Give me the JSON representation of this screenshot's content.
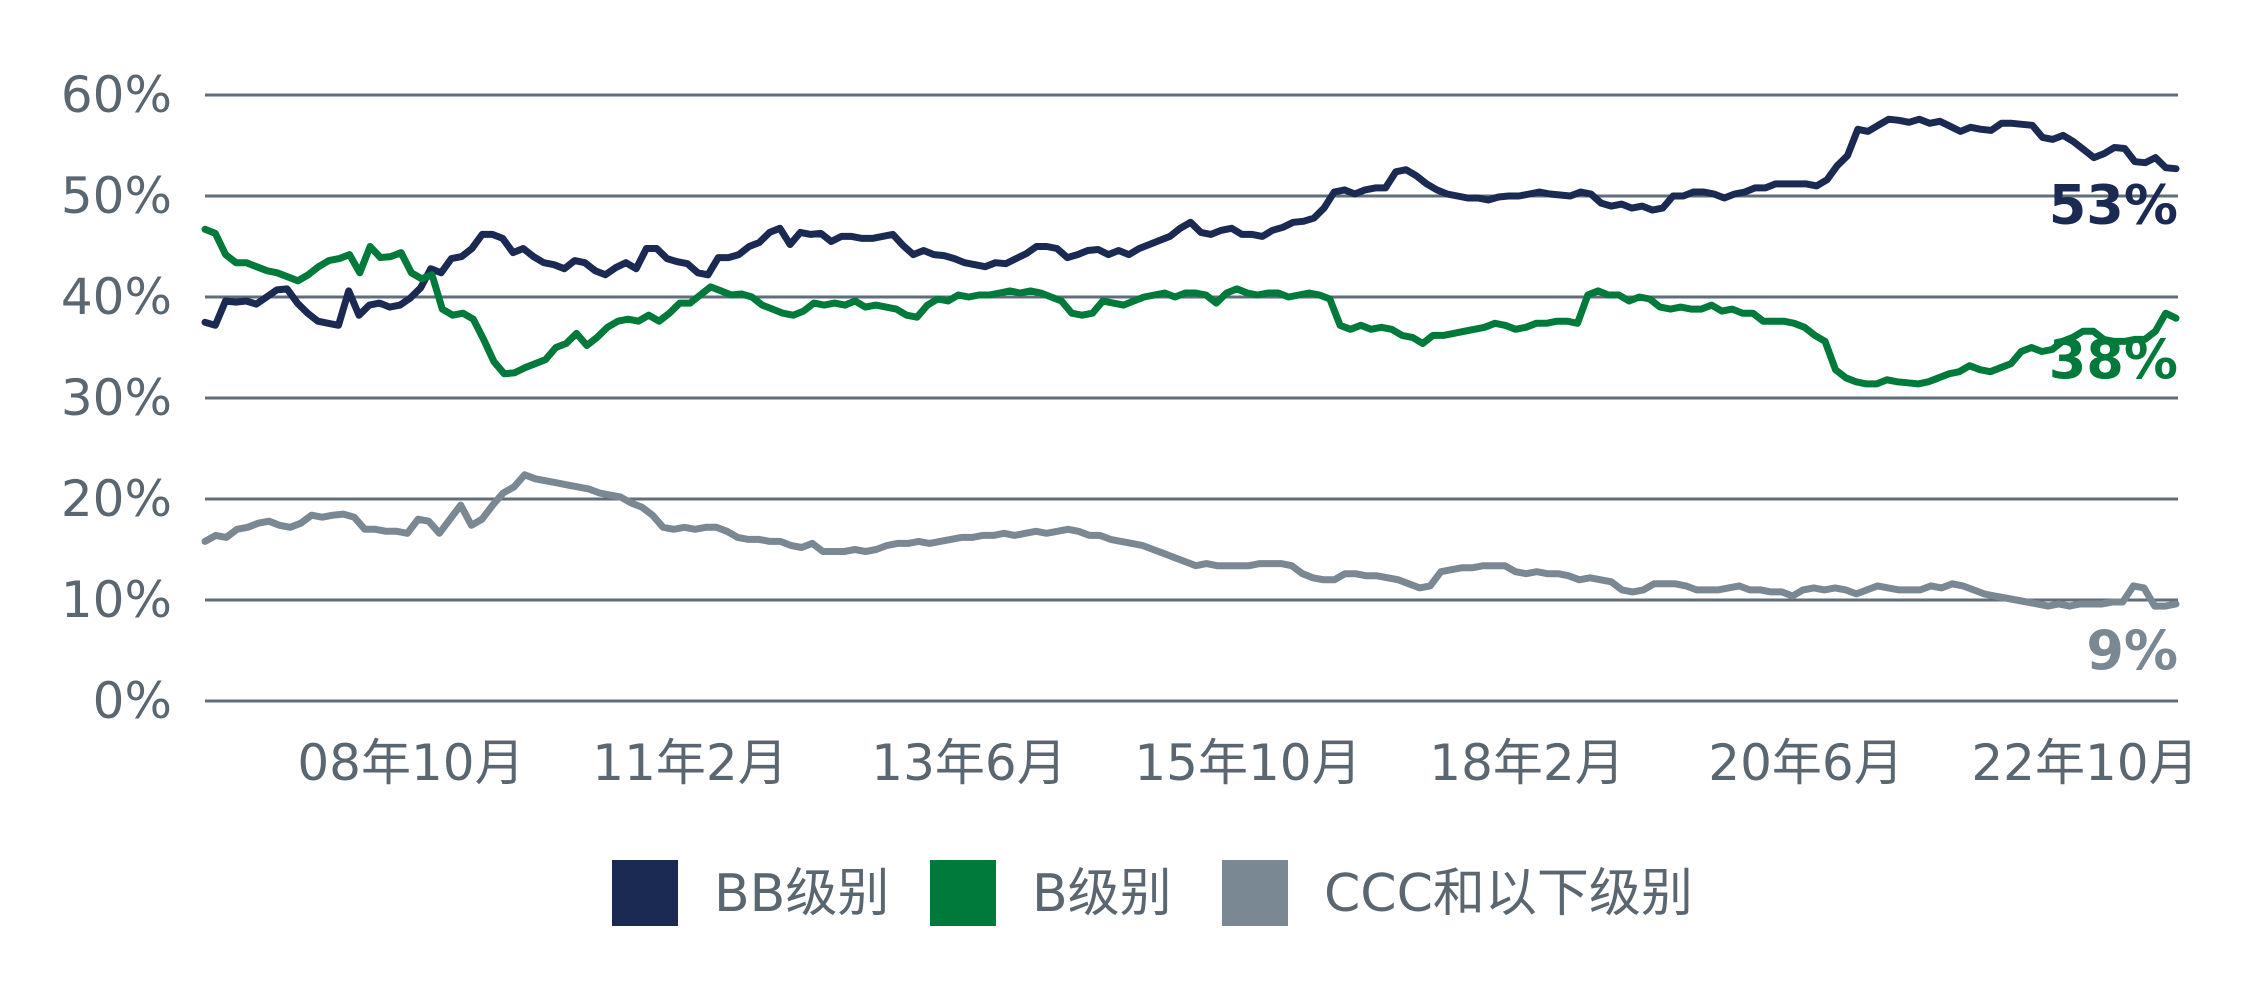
{
  "chart_data": {
    "type": "line",
    "title": "",
    "xlabel": "",
    "ylabel": "",
    "ylim": [
      0,
      60
    ],
    "y_ticks": [
      "0%",
      "10%",
      "20%",
      "30%",
      "40%",
      "50%",
      "60%"
    ],
    "x_ticks": [
      "08年10月",
      "11年2月",
      "13年6月",
      "15年10月",
      "18年2月",
      "20年6月",
      "22年10月"
    ],
    "grid": true,
    "legend_position": "bottom",
    "series": [
      {
        "name": "BB级别",
        "color": "#1b2a52",
        "end_label": "53%",
        "values": [
          37.5,
          37.2,
          39.6,
          39.5,
          39.6,
          39.3,
          40.0,
          40.7,
          40.8,
          39.4,
          38.4,
          37.6,
          37.4,
          37.2,
          40.6,
          38.2,
          39.2,
          39.4,
          39.0,
          39.2,
          39.9,
          40.9,
          42.8,
          42.4,
          43.8,
          44.0,
          44.8,
          46.2,
          46.2,
          45.8,
          44.4,
          44.8,
          44.0,
          43.4,
          43.2,
          42.8,
          43.6,
          43.4,
          42.6,
          42.2,
          42.9,
          43.4,
          42.8,
          44.8,
          44.8,
          43.8,
          43.5,
          43.3,
          42.4,
          42.2,
          43.9,
          43.9,
          44.2,
          45.0,
          45.4,
          46.4,
          46.8,
          45.2,
          46.4,
          46.2,
          46.3,
          45.5,
          46.0,
          46.0,
          45.8,
          45.8,
          46.0,
          46.2,
          45.1,
          44.2,
          44.6,
          44.2,
          44.1,
          43.8,
          43.4,
          43.2,
          43.0,
          43.4,
          43.3,
          43.8,
          44.3,
          45.0,
          45.0,
          44.8,
          43.9,
          44.2,
          44.6,
          44.7,
          44.2,
          44.6,
          44.2,
          44.8,
          45.2,
          45.6,
          46.0,
          46.8,
          47.4,
          46.4,
          46.2,
          46.6,
          46.8,
          46.2,
          46.2,
          46.0,
          46.6,
          46.9,
          47.4,
          47.5,
          47.8,
          48.8,
          50.4,
          50.6,
          50.2,
          50.6,
          50.8,
          50.8,
          52.4,
          52.6,
          52.0,
          51.2,
          50.6,
          50.2,
          50.0,
          49.8,
          49.8,
          49.6,
          49.9,
          50.0,
          50.0,
          50.2,
          50.4,
          50.2,
          50.1,
          50.0,
          50.4,
          50.2,
          49.3,
          49.0,
          49.2,
          48.8,
          49.0,
          48.6,
          48.8,
          50.0,
          50.0,
          50.4,
          50.4,
          50.2,
          49.8,
          50.2,
          50.4,
          50.8,
          50.8,
          51.2,
          51.2,
          51.2,
          51.2,
          51.0,
          51.6,
          53.0,
          54.0,
          56.6,
          56.4,
          57.0,
          57.6,
          57.5,
          57.3,
          57.6,
          57.2,
          57.4,
          56.9,
          56.4,
          56.8,
          56.6,
          56.5,
          57.2,
          57.2,
          57.1,
          57.0,
          55.8,
          55.6,
          56.0,
          55.4,
          54.6,
          53.8,
          54.2,
          54.8,
          54.7,
          53.4,
          53.3,
          53.8,
          52.8,
          52.7
        ]
      },
      {
        "name": "B级别",
        "color": "#007a3b",
        "end_label": "38%",
        "values": [
          46.7,
          46.3,
          44.2,
          43.4,
          43.4,
          43.0,
          42.6,
          42.4,
          42.0,
          41.6,
          42.2,
          43.0,
          43.6,
          43.8,
          44.2,
          42.4,
          45.0,
          43.9,
          44.0,
          44.4,
          42.4,
          41.8,
          42.2,
          38.8,
          38.2,
          38.4,
          37.8,
          35.8,
          33.6,
          32.4,
          32.5,
          33.0,
          33.4,
          33.8,
          35.0,
          35.4,
          36.4,
          35.2,
          36.0,
          37.0,
          37.6,
          37.8,
          37.6,
          38.2,
          37.6,
          38.4,
          39.4,
          39.4,
          40.2,
          41.0,
          40.6,
          40.2,
          40.3,
          40.0,
          39.2,
          38.8,
          38.4,
          38.2,
          38.6,
          39.4,
          39.2,
          39.4,
          39.2,
          39.6,
          39.0,
          39.2,
          39.0,
          38.8,
          38.2,
          38.0,
          39.2,
          39.8,
          39.6,
          40.2,
          40.0,
          40.2,
          40.2,
          40.4,
          40.6,
          40.4,
          40.6,
          40.4,
          40.0,
          39.6,
          38.4,
          38.2,
          38.4,
          39.6,
          39.4,
          39.2,
          39.6,
          40.0,
          40.2,
          40.4,
          40.0,
          40.4,
          40.4,
          40.2,
          39.4,
          40.4,
          40.8,
          40.4,
          40.2,
          40.4,
          40.4,
          40.0,
          40.2,
          40.4,
          40.2,
          39.8,
          37.2,
          36.8,
          37.2,
          36.8,
          37.0,
          36.8,
          36.2,
          36.0,
          35.4,
          36.2,
          36.2,
          36.4,
          36.6,
          36.8,
          37.0,
          37.4,
          37.2,
          36.8,
          37.0,
          37.4,
          37.4,
          37.6,
          37.6,
          37.4,
          40.2,
          40.6,
          40.2,
          40.2,
          39.6,
          40.0,
          39.8,
          39.0,
          38.8,
          39.0,
          38.8,
          38.8,
          39.2,
          38.6,
          38.8,
          38.4,
          38.4,
          37.6,
          37.6,
          37.6,
          37.4,
          37.0,
          36.2,
          35.6,
          32.8,
          32.0,
          31.6,
          31.4,
          31.4,
          31.8,
          31.6,
          31.5,
          31.4,
          31.6,
          32.0,
          32.4,
          32.6,
          33.2,
          32.8,
          32.6,
          33.0,
          33.4,
          34.6,
          35.0,
          34.6,
          34.8,
          35.6,
          36.0,
          36.6,
          36.6,
          35.8,
          35.6,
          35.6,
          35.8,
          35.8,
          36.6,
          38.4,
          37.9
        ]
      },
      {
        "name": "CCC和以下级别",
        "color": "#7a8893",
        "end_label": "9%",
        "values": [
          15.8,
          16.4,
          16.2,
          17.0,
          17.2,
          17.6,
          17.8,
          17.4,
          17.2,
          17.6,
          18.4,
          18.2,
          18.4,
          18.5,
          18.2,
          17.0,
          17.0,
          16.8,
          16.8,
          16.6,
          18.0,
          17.8,
          16.6,
          18.0,
          19.4,
          17.4,
          18.0,
          19.4,
          20.6,
          21.2,
          22.4,
          22.0,
          21.8,
          21.6,
          21.4,
          21.2,
          21.0,
          20.6,
          20.4,
          20.2,
          19.6,
          19.2,
          18.4,
          17.2,
          17.0,
          17.2,
          17.0,
          17.2,
          17.2,
          16.8,
          16.2,
          16.0,
          16.0,
          15.8,
          15.8,
          15.4,
          15.2,
          15.6,
          14.8,
          14.8,
          14.8,
          15.0,
          14.8,
          15.0,
          15.4,
          15.6,
          15.6,
          15.8,
          15.6,
          15.8,
          16.0,
          16.2,
          16.2,
          16.4,
          16.4,
          16.6,
          16.4,
          16.6,
          16.8,
          16.6,
          16.8,
          17.0,
          16.8,
          16.4,
          16.4,
          16.0,
          15.8,
          15.6,
          15.4,
          15.0,
          14.6,
          14.2,
          13.8,
          13.4,
          13.6,
          13.4,
          13.4,
          13.4,
          13.4,
          13.6,
          13.6,
          13.6,
          13.4,
          12.6,
          12.2,
          12.0,
          12.0,
          12.6,
          12.6,
          12.4,
          12.4,
          12.2,
          12.0,
          11.6,
          11.2,
          11.4,
          12.8,
          13.0,
          13.2,
          13.2,
          13.4,
          13.4,
          13.4,
          12.8,
          12.6,
          12.8,
          12.6,
          12.6,
          12.4,
          12.0,
          12.2,
          12.0,
          11.8,
          11.0,
          10.8,
          11.0,
          11.6,
          11.6,
          11.6,
          11.4,
          11.0,
          11.0,
          11.0,
          11.2,
          11.4,
          11.0,
          11.0,
          10.8,
          10.8,
          10.4,
          11.0,
          11.2,
          11.0,
          11.2,
          11.0,
          10.6,
          11.0,
          11.4,
          11.2,
          11.0,
          11.0,
          11.0,
          11.4,
          11.2,
          11.6,
          11.4,
          11.0,
          10.6,
          10.4,
          10.2,
          10.0,
          9.8,
          9.6,
          9.4,
          9.6,
          9.4,
          9.6,
          9.6,
          9.6,
          9.8,
          9.8,
          11.4,
          11.2,
          9.4,
          9.4,
          9.6
        ]
      }
    ]
  }
}
